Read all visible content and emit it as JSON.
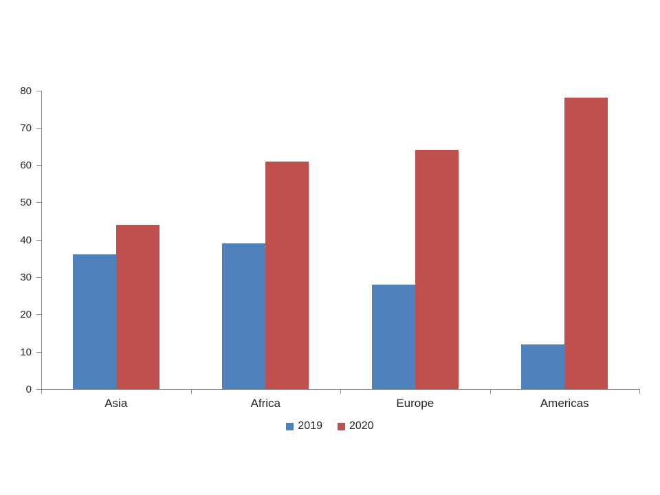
{
  "chart_data": {
    "type": "bar",
    "title": "",
    "xlabel": "",
    "ylabel": "",
    "categories": [
      "Asia",
      "Africa",
      "Europe",
      "Americas"
    ],
    "series": [
      {
        "name": "2019",
        "color": "#4F81BD",
        "values": [
          36,
          39,
          28,
          12
        ]
      },
      {
        "name": "2020",
        "color": "#C0504D",
        "values": [
          44,
          61,
          64,
          78
        ]
      }
    ],
    "ylim": [
      0,
      80
    ],
    "ytick_step": 10,
    "ytick_labels": [
      "0",
      "10",
      "20",
      "30",
      "40",
      "50",
      "60",
      "70",
      "80"
    ],
    "grid": false,
    "legend_position": "bottom",
    "axis_color": "#8C8C8C",
    "text_color": "#262626",
    "background": "#FFFFFF"
  }
}
